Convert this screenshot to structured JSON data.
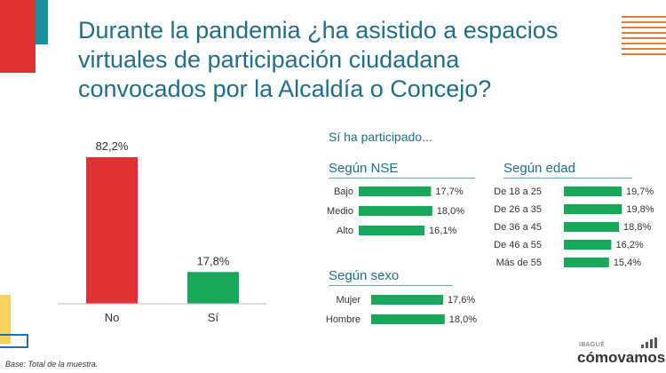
{
  "title": "Durante la pandemia ¿ha asistido a espacios virtuales de participación ciudadana convocados por la Alcaldía o Concejo?",
  "subtitle": "Sí ha participado...",
  "colors": {
    "red": "#e03232",
    "green": "#19a85a",
    "teal": "#1f6f8b",
    "orange": "#ee7b3a",
    "yellow": "#f7d15a",
    "blue": "#1c6fb8"
  },
  "note": "Base: Total de la muestra.",
  "logo": {
    "small": "IBAGUÉ",
    "big": "cómovamos"
  },
  "chart_data": [
    {
      "type": "bar",
      "categories": [
        "No",
        "Sí"
      ],
      "values": [
        82.2,
        17.8
      ],
      "labels": [
        "82,2%",
        "17,8%"
      ],
      "colors": [
        "#e03232",
        "#19a85a"
      ]
    },
    {
      "type": "bar",
      "orientation": "horizontal",
      "title": "Según NSE",
      "categories": [
        "Bajo",
        "Medio",
        "Alto"
      ],
      "values": [
        17.7,
        18.0,
        16.1
      ],
      "labels": [
        "17,7%",
        "18,0%",
        "16,1%"
      ]
    },
    {
      "type": "bar",
      "orientation": "horizontal",
      "title": "Según sexo",
      "categories": [
        "Mujer",
        "Hombre"
      ],
      "values": [
        17.6,
        18.0
      ],
      "labels": [
        "17,6%",
        "18,0%"
      ]
    },
    {
      "type": "bar",
      "orientation": "horizontal",
      "title": "Según edad",
      "categories": [
        "De 18 a 25",
        "De 26 a 35",
        "De 36 a 45",
        "De 46 a 55",
        "Más de 55"
      ],
      "values": [
        19.7,
        19.8,
        18.8,
        16.2,
        15.4
      ],
      "labels": [
        "19,7%",
        "19,8%",
        "18,8%",
        "16,2%",
        "15,4%"
      ]
    }
  ]
}
